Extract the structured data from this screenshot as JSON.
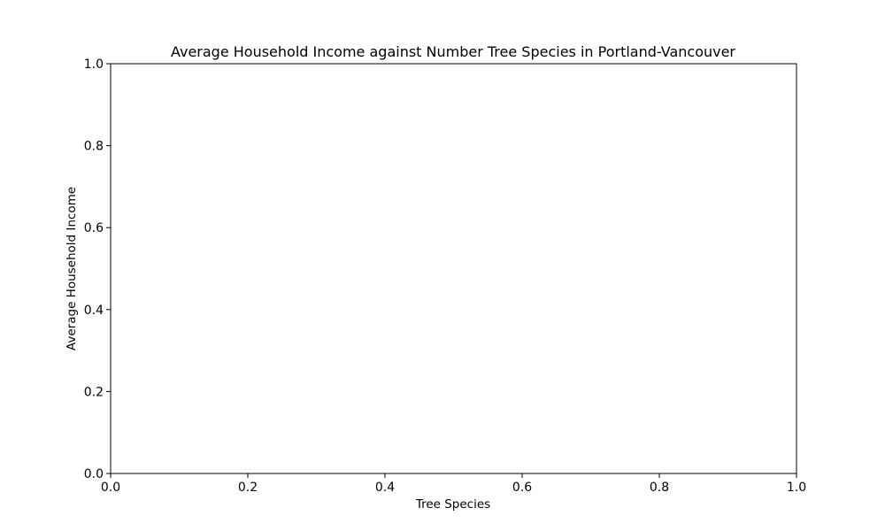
{
  "chart_data": {
    "type": "scatter",
    "title": "Average Household Income against Number Tree Species in Portland-Vancouver",
    "xlabel": "Tree Species",
    "ylabel": "Average Household Income",
    "xlim": [
      0,
      1
    ],
    "ylim": [
      0,
      1
    ],
    "xticks": [
      "0.0",
      "0.2",
      "0.4",
      "0.6",
      "0.8",
      "1.0"
    ],
    "yticks": [
      "0.0",
      "0.2",
      "0.4",
      "0.6",
      "0.8",
      "1.0"
    ],
    "x": [],
    "y": [],
    "grid": false,
    "legend": "none"
  }
}
